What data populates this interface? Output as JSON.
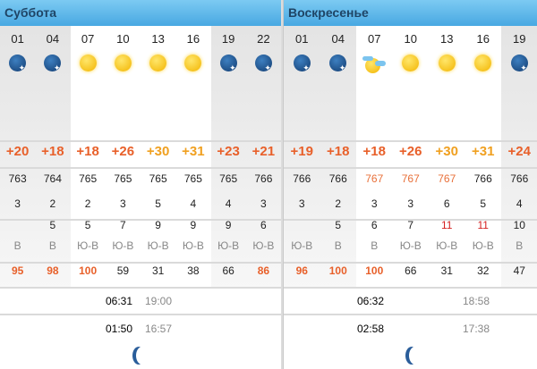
{
  "colors": {
    "temp_warm": "#e8602a",
    "temp_hot": "#f0a020",
    "pressure_high": "#e8703a",
    "gust_high": "#d42020",
    "humidity_high": "#e8602a",
    "header": "#48a8e2"
  },
  "days": [
    {
      "title": "Суббота",
      "columns": [
        {
          "hour": "01",
          "night": true,
          "icon": "night-cloudy-icon",
          "temp": "+20",
          "temp_level": "warm",
          "pressure": "763",
          "wind": "3",
          "gust": "",
          "dir": "В",
          "humidity": "95",
          "hum_high": true
        },
        {
          "hour": "04",
          "night": true,
          "icon": "clear-night-icon",
          "temp": "+18",
          "temp_level": "warm",
          "pressure": "764",
          "wind": "2",
          "gust": "5",
          "dir": "В",
          "humidity": "98",
          "hum_high": true
        },
        {
          "hour": "07",
          "night": false,
          "icon": "sun-icon",
          "temp": "+18",
          "temp_level": "warm",
          "pressure": "765",
          "wind": "2",
          "gust": "5",
          "dir": "Ю-В",
          "humidity": "100",
          "hum_high": true
        },
        {
          "hour": "10",
          "night": false,
          "icon": "sun-icon",
          "temp": "+26",
          "temp_level": "warm",
          "pressure": "765",
          "wind": "3",
          "gust": "7",
          "dir": "Ю-В",
          "humidity": "59"
        },
        {
          "hour": "13",
          "night": false,
          "icon": "sun-icon",
          "temp": "+30",
          "temp_level": "hot",
          "pressure": "765",
          "wind": "5",
          "gust": "9",
          "dir": "Ю-В",
          "humidity": "31"
        },
        {
          "hour": "16",
          "night": false,
          "icon": "sun-icon",
          "temp": "+31",
          "temp_level": "hot",
          "pressure": "765",
          "wind": "4",
          "gust": "9",
          "dir": "Ю-В",
          "humidity": "38"
        },
        {
          "hour": "19",
          "night": true,
          "icon": "clear-night-icon",
          "temp": "+23",
          "temp_level": "warm",
          "pressure": "765",
          "wind": "4",
          "gust": "9",
          "dir": "Ю-В",
          "humidity": "66"
        },
        {
          "hour": "22",
          "night": true,
          "icon": "clear-night-icon",
          "temp": "+21",
          "temp_level": "warm",
          "pressure": "766",
          "wind": "3",
          "gust": "6",
          "dir": "Ю-В",
          "humidity": "86",
          "hum_high": true
        }
      ],
      "sunrise": "06:31",
      "sunset": "19:00",
      "moonrise": "01:50",
      "moonset": "16:57"
    },
    {
      "title": "Воскресенье",
      "columns": [
        {
          "hour": "01",
          "night": true,
          "icon": "clear-night-icon",
          "temp": "+19",
          "temp_level": "warm",
          "pressure": "766",
          "wind": "3",
          "gust": "",
          "dir": "Ю-В",
          "humidity": "96",
          "hum_high": true
        },
        {
          "hour": "04",
          "night": true,
          "icon": "clear-night-icon",
          "temp": "+18",
          "temp_level": "warm",
          "pressure": "766",
          "wind": "2",
          "gust": "5",
          "dir": "В",
          "humidity": "100",
          "hum_high": true
        },
        {
          "hour": "07",
          "night": false,
          "icon": "sun-cloud-icon",
          "temp": "+18",
          "temp_level": "warm",
          "pressure": "767",
          "pres_high": true,
          "wind": "3",
          "gust": "6",
          "dir": "В",
          "humidity": "100",
          "hum_high": true
        },
        {
          "hour": "10",
          "night": false,
          "icon": "sun-icon",
          "temp": "+26",
          "temp_level": "warm",
          "pressure": "767",
          "pres_high": true,
          "wind": "3",
          "gust": "7",
          "dir": "Ю-В",
          "humidity": "66"
        },
        {
          "hour": "13",
          "night": false,
          "icon": "sun-icon",
          "temp": "+30",
          "temp_level": "hot",
          "pressure": "767",
          "pres_high": true,
          "wind": "6",
          "gust": "11",
          "gust_high": true,
          "dir": "Ю-В",
          "humidity": "31"
        },
        {
          "hour": "16",
          "night": false,
          "icon": "sun-icon",
          "temp": "+31",
          "temp_level": "hot",
          "pressure": "766",
          "wind": "5",
          "gust": "11",
          "gust_high": true,
          "dir": "Ю-В",
          "humidity": "32"
        },
        {
          "hour": "19",
          "night": true,
          "icon": "clear-night-icon",
          "temp": "+24",
          "temp_level": "warm",
          "pressure": "766",
          "wind": "4",
          "gust": "10",
          "dir": "В",
          "humidity": "47"
        }
      ],
      "sunrise": "06:32",
      "sunset": "18:58",
      "moonrise": "02:58",
      "moonset": "17:38"
    }
  ]
}
